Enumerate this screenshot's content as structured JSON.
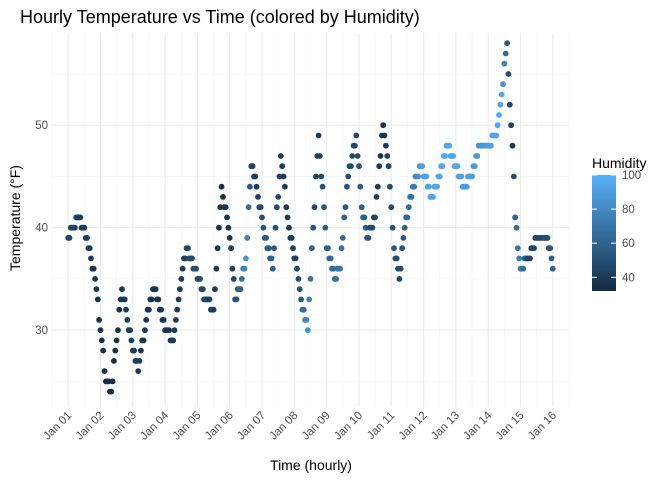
{
  "chart_data": {
    "type": "scatter",
    "title": "Hourly Temperature vs Time (colored by Humidity)",
    "xlabel": "Time (hourly)",
    "ylabel": "Temperature (°F)",
    "x_ticks": [
      "Jan 01",
      "Jan 02",
      "Jan 03",
      "Jan 04",
      "Jan 05",
      "Jan 06",
      "Jan 07",
      "Jan 08",
      "Jan 09",
      "Jan 10",
      "Jan 11",
      "Jan 12",
      "Jan 13",
      "Jan 14",
      "Jan 15",
      "Jan 16"
    ],
    "y_ticks": [
      30,
      40,
      50
    ],
    "xlim": [
      "2024-12-31T12:00",
      "2025-01-16T12:00"
    ],
    "ylim": [
      22.5,
      59
    ],
    "grid": true,
    "legend": {
      "title": "Humidity",
      "position": "right",
      "ticks": [
        40,
        60,
        80,
        100
      ],
      "range": [
        32,
        100
      ],
      "color_low": "#132b43",
      "color_high": "#56b1f7"
    },
    "anchors": [
      [
        "2025-01-01T00:00",
        39,
        45
      ],
      [
        "2025-01-01T04:00",
        40,
        45
      ],
      [
        "2025-01-01T08:00",
        41,
        40
      ],
      [
        "2025-01-01T14:00",
        39,
        42
      ],
      [
        "2025-01-01T20:00",
        35,
        38
      ],
      [
        "2025-01-02T00:00",
        30,
        35
      ],
      [
        "2025-01-02T04:00",
        25,
        33
      ],
      [
        "2025-01-02T08:00",
        24,
        33
      ],
      [
        "2025-01-02T12:00",
        29,
        35
      ],
      [
        "2025-01-02T16:00",
        34,
        38
      ],
      [
        "2025-01-02T20:00",
        31,
        40
      ],
      [
        "2025-01-03T00:00",
        28,
        42
      ],
      [
        "2025-01-03T04:00",
        26,
        40
      ],
      [
        "2025-01-03T10:00",
        31,
        38
      ],
      [
        "2025-01-03T16:00",
        34,
        36
      ],
      [
        "2025-01-04T00:00",
        30,
        38
      ],
      [
        "2025-01-04T06:00",
        29,
        40
      ],
      [
        "2025-01-04T12:00",
        35,
        40
      ],
      [
        "2025-01-04T16:00",
        38,
        45
      ],
      [
        "2025-01-04T22:00",
        36,
        50
      ],
      [
        "2025-01-05T06:00",
        33,
        45
      ],
      [
        "2025-01-05T12:00",
        32,
        40
      ],
      [
        "2025-01-05T18:00",
        44,
        36
      ],
      [
        "2025-01-06T00:00",
        39,
        38
      ],
      [
        "2025-01-06T04:00",
        33,
        50
      ],
      [
        "2025-01-06T08:00",
        34,
        60
      ],
      [
        "2025-01-06T12:00",
        37,
        85
      ],
      [
        "2025-01-06T16:00",
        46,
        45
      ],
      [
        "2025-01-06T20:00",
        44,
        40
      ],
      [
        "2025-01-07T02:00",
        39,
        55
      ],
      [
        "2025-01-07T08:00",
        36,
        60
      ],
      [
        "2025-01-07T14:00",
        47,
        40
      ],
      [
        "2025-01-07T20:00",
        40,
        40
      ],
      [
        "2025-01-08T02:00",
        36,
        45
      ],
      [
        "2025-01-08T06:00",
        32,
        60
      ],
      [
        "2025-01-08T10:00",
        30,
        85
      ],
      [
        "2025-01-08T14:00",
        40,
        50
      ],
      [
        "2025-01-08T18:00",
        49,
        40
      ],
      [
        "2025-01-09T00:00",
        38,
        60
      ],
      [
        "2025-01-09T06:00",
        35,
        65
      ],
      [
        "2025-01-09T10:00",
        36,
        70
      ],
      [
        "2025-01-09T16:00",
        45,
        50
      ],
      [
        "2025-01-09T22:00",
        49,
        45
      ],
      [
        "2025-01-10T02:00",
        42,
        60
      ],
      [
        "2025-01-10T06:00",
        39,
        55
      ],
      [
        "2025-01-10T12:00",
        41,
        45
      ],
      [
        "2025-01-10T18:00",
        50,
        35
      ],
      [
        "2025-01-10T22:00",
        46,
        45
      ],
      [
        "2025-01-11T02:00",
        38,
        55
      ],
      [
        "2025-01-11T06:00",
        35,
        45
      ],
      [
        "2025-01-11T10:00",
        40,
        60
      ],
      [
        "2025-01-11T16:00",
        44,
        70
      ],
      [
        "2025-01-11T22:00",
        46,
        90
      ],
      [
        "2025-01-12T06:00",
        43,
        95
      ],
      [
        "2025-01-12T12:00",
        45,
        95
      ],
      [
        "2025-01-12T18:00",
        48,
        95
      ],
      [
        "2025-01-13T00:00",
        46,
        95
      ],
      [
        "2025-01-13T06:00",
        44,
        90
      ],
      [
        "2025-01-13T12:00",
        45,
        90
      ],
      [
        "2025-01-13T18:00",
        48,
        85
      ],
      [
        "2025-01-14T00:00",
        48,
        90
      ],
      [
        "2025-01-14T06:00",
        49,
        95
      ],
      [
        "2025-01-14T10:00",
        53,
        95
      ],
      [
        "2025-01-14T14:00",
        58,
        55
      ],
      [
        "2025-01-14T16:00",
        52,
        45
      ],
      [
        "2025-01-14T18:00",
        48,
        40
      ],
      [
        "2025-01-14T20:00",
        41,
        60
      ],
      [
        "2025-01-14T22:00",
        38,
        70
      ],
      [
        "2025-01-15T00:00",
        36,
        75
      ],
      [
        "2025-01-15T06:00",
        37,
        45
      ],
      [
        "2025-01-15T12:00",
        39,
        45
      ],
      [
        "2025-01-15T20:00",
        39,
        50
      ],
      [
        "2025-01-16T00:00",
        36,
        60
      ]
    ]
  }
}
